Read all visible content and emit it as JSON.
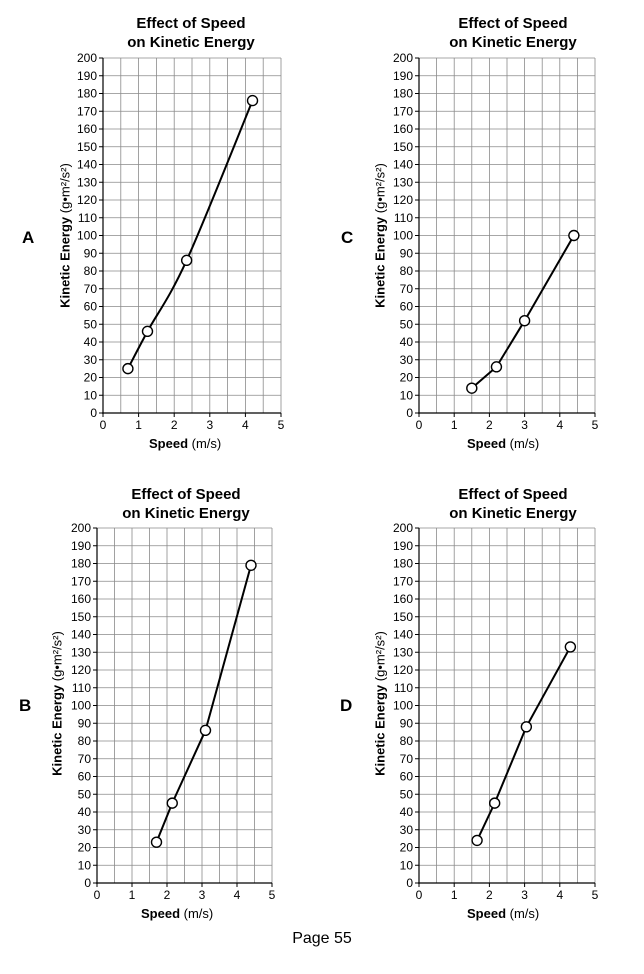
{
  "page": {
    "footer": "Page 55"
  },
  "chart_data": [
    {
      "id": "A",
      "type": "line",
      "option_label": "A",
      "title_line1": "Effect of Speed",
      "title_line2": "on Kinetic Energy",
      "xlabel_bold": "Speed",
      "xlabel_unit": "(m/s)",
      "ylabel_bold": "Kinetic Energy",
      "ylabel_unit": "(g•m²/s²)",
      "xlim": [
        0,
        5
      ],
      "ylim": [
        0,
        200
      ],
      "x_ticks": [
        0,
        1,
        2,
        3,
        4,
        5
      ],
      "y_ticks": [
        0,
        10,
        20,
        30,
        40,
        50,
        60,
        70,
        80,
        90,
        100,
        110,
        120,
        130,
        140,
        150,
        160,
        170,
        180,
        190,
        200
      ],
      "grid": true,
      "curve": "smooth",
      "x": [
        0.7,
        1.25,
        2.35,
        4.2
      ],
      "y": [
        25,
        46,
        86,
        176
      ]
    },
    {
      "id": "C",
      "type": "line",
      "option_label": "C",
      "title_line1": "Effect of Speed",
      "title_line2": "on Kinetic Energy",
      "xlabel_bold": "Speed",
      "xlabel_unit": "(m/s)",
      "ylabel_bold": "Kinetic Energy",
      "ylabel_unit": "(g•m²/s²)",
      "xlim": [
        0,
        5
      ],
      "ylim": [
        0,
        200
      ],
      "x_ticks": [
        0,
        1,
        2,
        3,
        4,
        5
      ],
      "y_ticks": [
        0,
        10,
        20,
        30,
        40,
        50,
        60,
        70,
        80,
        90,
        100,
        110,
        120,
        130,
        140,
        150,
        160,
        170,
        180,
        190,
        200
      ],
      "grid": true,
      "curve": "straight",
      "x": [
        1.5,
        2.2,
        3.0,
        4.4
      ],
      "y": [
        14,
        26,
        52,
        100
      ]
    },
    {
      "id": "B",
      "type": "line",
      "option_label": "B",
      "title_line1": "Effect of Speed",
      "title_line2": "on Kinetic Energy",
      "xlabel_bold": "Speed",
      "xlabel_unit": "(m/s)",
      "ylabel_bold": "Kinetic Energy",
      "ylabel_unit": "(g•m²/s²)",
      "xlim": [
        0,
        5
      ],
      "ylim": [
        0,
        200
      ],
      "x_ticks": [
        0,
        1,
        2,
        3,
        4,
        5
      ],
      "y_ticks": [
        0,
        10,
        20,
        30,
        40,
        50,
        60,
        70,
        80,
        90,
        100,
        110,
        120,
        130,
        140,
        150,
        160,
        170,
        180,
        190,
        200
      ],
      "grid": true,
      "curve": "straight",
      "x": [
        1.7,
        2.15,
        3.1,
        4.4
      ],
      "y": [
        23,
        45,
        86,
        179
      ]
    },
    {
      "id": "D",
      "type": "line",
      "option_label": "D",
      "title_line1": "Effect of Speed",
      "title_line2": "on Kinetic Energy",
      "xlabel_bold": "Speed",
      "xlabel_unit": "(m/s)",
      "ylabel_bold": "Kinetic Energy",
      "ylabel_unit": "(g•m²/s²)",
      "xlim": [
        0,
        5
      ],
      "ylim": [
        0,
        200
      ],
      "x_ticks": [
        0,
        1,
        2,
        3,
        4,
        5
      ],
      "y_ticks": [
        0,
        10,
        20,
        30,
        40,
        50,
        60,
        70,
        80,
        90,
        100,
        110,
        120,
        130,
        140,
        150,
        160,
        170,
        180,
        190,
        200
      ],
      "grid": true,
      "curve": "straight",
      "x": [
        1.65,
        2.15,
        3.05,
        4.3
      ],
      "y": [
        24,
        45,
        88,
        133
      ]
    }
  ]
}
